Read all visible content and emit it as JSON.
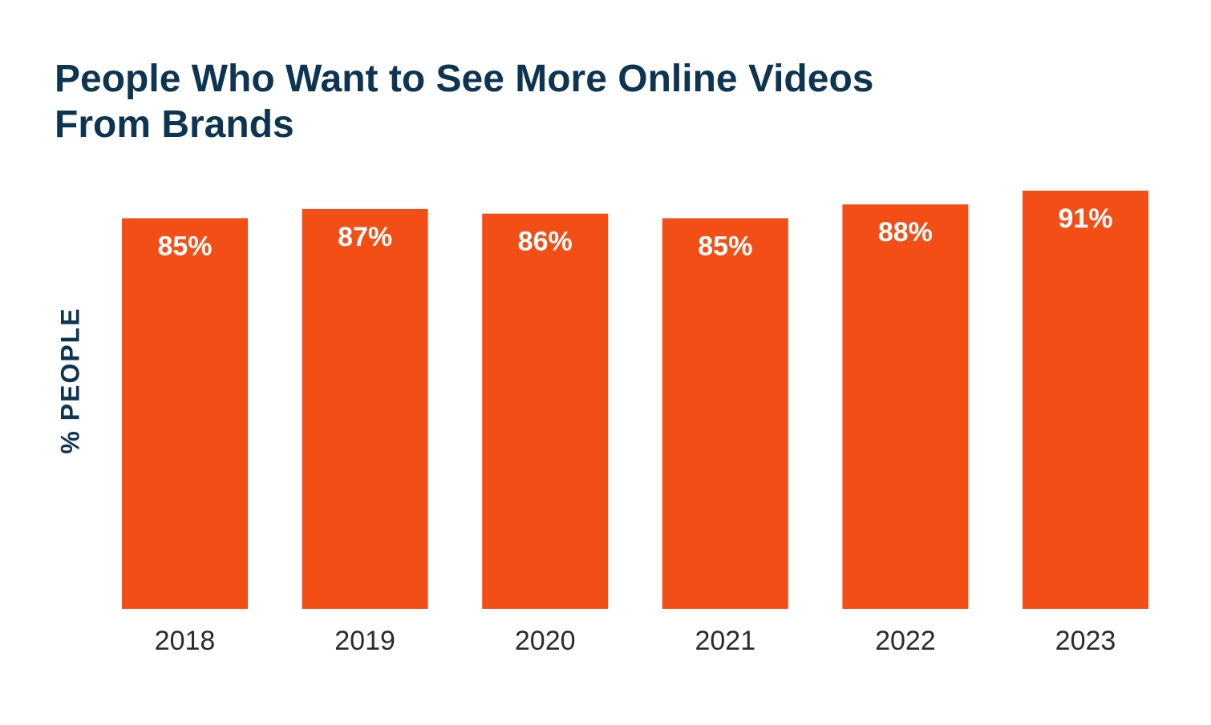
{
  "title_lines": [
    "People Who Want to See More Online Videos",
    "From Brands"
  ],
  "chart_data": {
    "type": "bar",
    "title": "People Who Want to See More Online Videos From Brands",
    "xlabel": "",
    "ylabel": "% PEOPLE",
    "categories": [
      "2018",
      "2019",
      "2020",
      "2021",
      "2022",
      "2023"
    ],
    "values": [
      85,
      87,
      86,
      85,
      88,
      91
    ],
    "value_labels": [
      "85%",
      "87%",
      "86%",
      "85%",
      "88%",
      "91%"
    ],
    "ylim": [
      0,
      91
    ],
    "grid": false,
    "bar_color": "#f24e16"
  }
}
